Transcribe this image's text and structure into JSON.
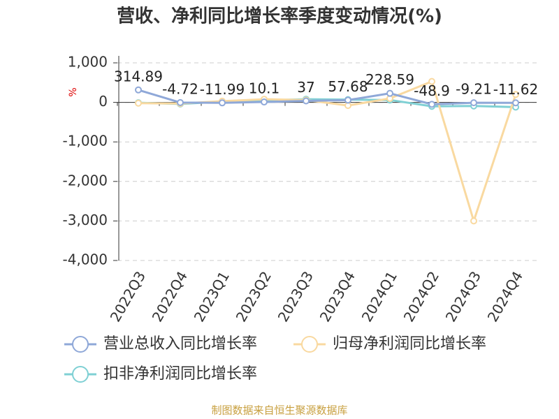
{
  "chart_data": {
    "type": "line",
    "title": "营收、净利同比增长率季度变动情况(%)",
    "y_label": "%",
    "categories": [
      "2022Q3",
      "2022Q4",
      "2023Q1",
      "2023Q2",
      "2023Q3",
      "2023Q4",
      "2024Q1",
      "2024Q2",
      "2024Q3",
      "2024Q4"
    ],
    "series": [
      {
        "name": "营业总收入同比增长率",
        "color": "#8fa8d8",
        "values": [
          314.89,
          -4.72,
          -11.99,
          10.1,
          37,
          57.68,
          228.59,
          -48.9,
          -9.21,
          -11.62
        ],
        "show_labels": true
      },
      {
        "name": "归母净利润同比增长率",
        "color": "#f9d9a0",
        "values": [
          -20,
          -30,
          30,
          80,
          60,
          -80,
          100,
          530,
          -3000,
          200
        ],
        "show_labels": false
      },
      {
        "name": "扣非净利润同比增长率",
        "color": "#7fd0d4",
        "values": [
          -10,
          -40,
          20,
          50,
          80,
          70,
          60,
          -100,
          -90,
          -120
        ],
        "show_labels": false
      }
    ],
    "ylim": [
      -4000,
      1000
    ],
    "yticks": [
      {
        "value": 1000,
        "label": "1,000"
      },
      0,
      {
        "value": -1000,
        "label": "-1,000"
      },
      {
        "value": -2000,
        "label": "-2,000"
      },
      {
        "value": -3000,
        "label": "-3,000"
      },
      {
        "value": -4000,
        "label": "-4,000"
      }
    ],
    "grid": true,
    "source": "制图数据来自恒生聚源数据库"
  }
}
